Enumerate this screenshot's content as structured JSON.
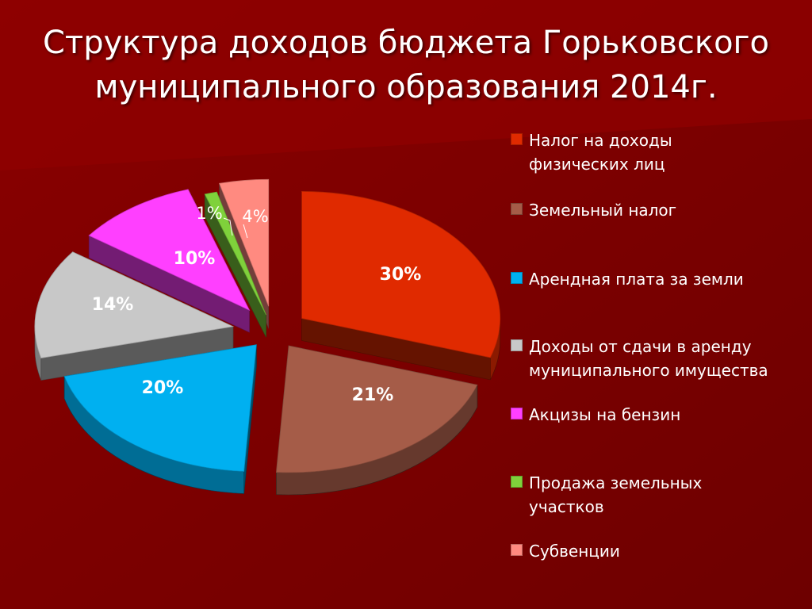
{
  "slide": {
    "title_line1": "Структура доходов бюджета Горьковского",
    "title_line2": "муниципального образования 2014г."
  },
  "chart_data": {
    "type": "pie",
    "style": "3d-exploded",
    "title": "Структура доходов бюджета Горьковского муниципального образования 2014г.",
    "legend_position": "right",
    "slices": [
      {
        "name": "Налог на доходы физических лиц",
        "value": 30,
        "label": "30%",
        "color": "#e02a00"
      },
      {
        "name": "Земельный налог",
        "value": 21,
        "label": "21%",
        "color": "#a55c48"
      },
      {
        "name": "Арендная плата за земли",
        "value": 20,
        "label": "20%",
        "color": "#00b0f0"
      },
      {
        "name": "Доходы от сдачи в аренду муниципального имущества",
        "value": 14,
        "label": "14%",
        "color": "#c8c8c8"
      },
      {
        "name": "Акцизы на бензин",
        "value": 10,
        "label": "10%",
        "color": "#ff3fff"
      },
      {
        "name": "Продажа земельных участков",
        "value": 1,
        "label": "1%",
        "color": "#7fd13b"
      },
      {
        "name": "Субвенции",
        "value": 4,
        "label": "4%",
        "color": "#ff8a80"
      }
    ]
  },
  "legend": {
    "items": [
      {
        "line1": "Налог на доходы",
        "line2": "физических лиц",
        "color": "#e02a00"
      },
      {
        "line1": "Земельный налог",
        "line2": "",
        "color": "#a55c48"
      },
      {
        "line1": "Арендная плата за земли",
        "line2": "",
        "color": "#00b0f0"
      },
      {
        "line1": "Доходы от сдачи в аренду",
        "line2": "муниципального имущества",
        "color": "#c8c8c8"
      },
      {
        "line1": "Акцизы на бензин",
        "line2": "",
        "color": "#ff3fff"
      },
      {
        "line1": "Продажа земельных",
        "line2": "участков",
        "color": "#7fd13b"
      },
      {
        "line1": "Субвенции",
        "line2": "",
        "color": "#ff8a80"
      }
    ]
  }
}
